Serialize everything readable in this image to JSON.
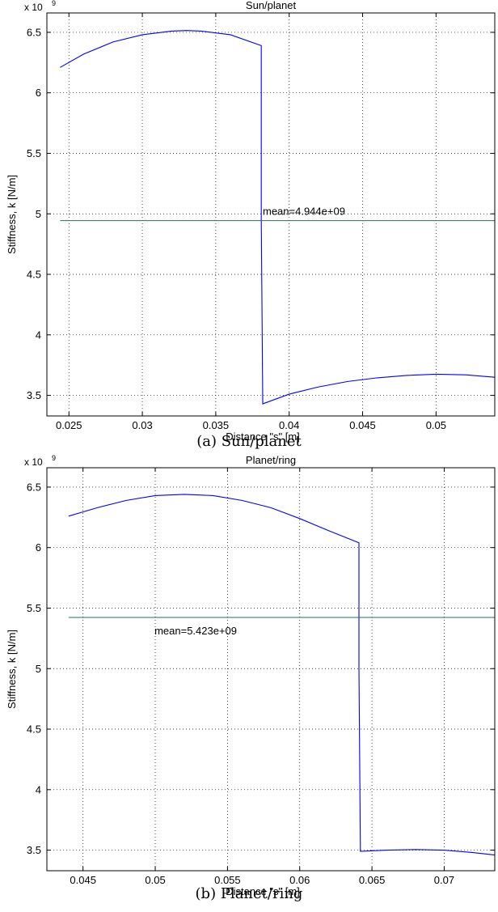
{
  "chart_data": [
    {
      "type": "line",
      "title": "Sun/planet",
      "xlabel": "Distance \"s\" [m]",
      "ylabel": "Stiffness, k [N/m]",
      "y_multiplier_label": "x 10",
      "y_multiplier_exponent": "9",
      "xlim": [
        0.0235,
        0.054
      ],
      "ylim": [
        3.33,
        6.66
      ],
      "xticks": [
        0.025,
        0.03,
        0.035,
        0.04,
        0.045,
        0.05
      ],
      "xtick_labels": [
        "0.025",
        "0.03",
        "0.035",
        "0.04",
        "0.045",
        "0.05"
      ],
      "yticks": [
        3.5,
        4,
        4.5,
        5,
        5.5,
        6,
        6.5
      ],
      "ytick_labels": [
        "3.5",
        "4",
        "4.5",
        "5",
        "5.5",
        "6",
        "6.5"
      ],
      "grid": true,
      "series": [
        {
          "color": "#0000ff",
          "x": [
            0.0244,
            0.026,
            0.028,
            0.03,
            0.032,
            0.033,
            0.034,
            0.036,
            0.0381,
            0.0381,
            0.0382,
            0.04,
            0.042,
            0.044,
            0.046,
            0.048,
            0.05,
            0.052,
            0.054
          ],
          "y": [
            6.21,
            6.32,
            6.42,
            6.48,
            6.51,
            6.515,
            6.51,
            6.48,
            6.39,
            4.95,
            3.43,
            3.51,
            3.57,
            3.615,
            3.645,
            3.665,
            3.675,
            3.67,
            3.65
          ]
        },
        {
          "color": "#2e6b5e",
          "x": [
            0.0244,
            0.054
          ],
          "y": [
            4.944,
            4.944
          ]
        }
      ],
      "annotation": {
        "text": "mean=4.944e+09",
        "x": 0.0382,
        "y": 5.02,
        "anchor": "start"
      },
      "caption": "(a) Sun/planet"
    },
    {
      "type": "line",
      "title": "Planet/ring",
      "xlabel": "Distance \"s\" [m]",
      "ylabel": "Stiffness, k [N/m]",
      "y_multiplier_label": "x 10",
      "y_multiplier_exponent": "9",
      "xlim": [
        0.0425,
        0.0735
      ],
      "ylim": [
        3.33,
        6.66
      ],
      "xticks": [
        0.045,
        0.05,
        0.055,
        0.06,
        0.065,
        0.07
      ],
      "xtick_labels": [
        "0.045",
        "0.05",
        "0.055",
        "0.06",
        "0.065",
        "0.07"
      ],
      "yticks": [
        3.5,
        4,
        4.5,
        5,
        5.5,
        6,
        6.5
      ],
      "ytick_labels": [
        "3.5",
        "4",
        "4.5",
        "5",
        "5.5",
        "6",
        "6.5"
      ],
      "grid": true,
      "series": [
        {
          "color": "#0000ff",
          "x": [
            0.044,
            0.046,
            0.048,
            0.05,
            0.052,
            0.054,
            0.056,
            0.058,
            0.06,
            0.062,
            0.0641,
            0.0641,
            0.0642,
            0.066,
            0.068,
            0.07,
            0.072,
            0.0735
          ],
          "y": [
            6.26,
            6.33,
            6.39,
            6.43,
            6.44,
            6.43,
            6.39,
            6.33,
            6.24,
            6.14,
            6.04,
            5.0,
            3.49,
            3.5,
            3.505,
            3.5,
            3.48,
            3.46
          ]
        },
        {
          "color": "#2e6b5e",
          "x": [
            0.044,
            0.0735
          ],
          "y": [
            5.423,
            5.423
          ]
        }
      ],
      "annotation": {
        "text": "mean=5.423e+09",
        "x": 0.0528,
        "y": 5.31,
        "anchor": "middle"
      },
      "caption": "(b) Planet/ring"
    }
  ]
}
